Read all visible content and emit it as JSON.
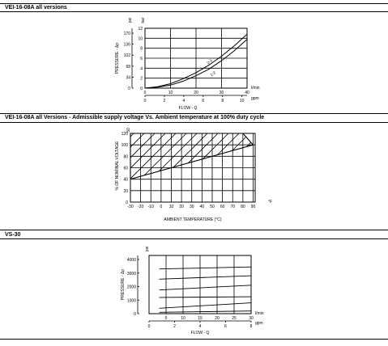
{
  "sections": [
    {
      "title": "VEI-16-08A all versions"
    },
    {
      "title": "VEI-16-08A all Versions - Admissible supply voltage Vs. Ambient temperature at 100% duty cycle"
    },
    {
      "title": "VS-30"
    }
  ],
  "chart_data": [
    {
      "type": "line",
      "y_unit": "bar",
      "y_ticks": [
        0,
        2,
        4,
        6,
        8,
        10,
        12
      ],
      "y_ticks_psi": [
        "0",
        "34",
        "68",
        "102",
        "136",
        "170"
      ],
      "y_psi_label": "psi",
      "ylabel": "PRESSURE - Δp",
      "ylim": [
        0,
        12
      ],
      "x_unit": "l/min",
      "x_ticks": [
        0,
        10,
        20,
        30,
        40
      ],
      "xlim": [
        0,
        40
      ],
      "x2_unit": "gpm",
      "x2_ticks": [
        "0",
        "2",
        "4",
        "6",
        "8",
        "10"
      ],
      "xlabel": "FLOW - Q",
      "series": [
        {
          "name": "2-1",
          "x": [
            0,
            5,
            10,
            15,
            20,
            25,
            30,
            35,
            40
          ],
          "y": [
            0,
            0.3,
            0.9,
            1.9,
            3.1,
            4.6,
            6.4,
            8.5,
            10.8
          ]
        },
        {
          "name": "1-2",
          "x": [
            0,
            5,
            10,
            15,
            20,
            25,
            30,
            35,
            40
          ],
          "y": [
            0,
            0.2,
            0.6,
            1.4,
            2.5,
            3.8,
            5.5,
            7.5,
            9.8
          ]
        }
      ]
    },
    {
      "type": "area",
      "ylabel": "% OF NOMINAL VOLTAGE",
      "y_ticks": [
        0,
        20,
        40,
        60,
        80,
        100,
        120
      ],
      "y_top_label": "50",
      "ylim": [
        0,
        120
      ],
      "x_unit": "°F",
      "x_ticks": [
        -30,
        -20,
        -10,
        0,
        10,
        20,
        30,
        40,
        50,
        60,
        70,
        80,
        90
      ],
      "x_tick_labels": [
        "-30",
        "-20",
        "-10",
        "0",
        "10",
        "20",
        "30",
        "40",
        "50",
        "60",
        "70",
        "80",
        "90"
      ],
      "xlim": [
        -30,
        92
      ],
      "xlabel": "AMBIENT TEMPERATURE (°C)",
      "boundary_upper": {
        "x": [
          -30,
          80,
          90
        ],
        "y": [
          120,
          120,
          100
        ]
      },
      "boundary_lower": {
        "x": [
          -30,
          90
        ],
        "y": [
          40,
          100
        ]
      }
    },
    {
      "type": "line",
      "ylabel": "PRESSURE - Δp",
      "y_ticks": [
        0,
        1000,
        2000,
        3000,
        4000
      ],
      "y_top_label": "psi",
      "ylim": [
        0,
        4300
      ],
      "x_unit": "l/min",
      "x_ticks": [
        0,
        5,
        10,
        15,
        20,
        25,
        30
      ],
      "x_tick_labels": [
        "",
        "5",
        "10",
        "15",
        "20",
        "25",
        "30"
      ],
      "xlim": [
        0,
        30
      ],
      "x2_unit": "gpm",
      "x2_ticks": [
        "0",
        "2",
        "4",
        "6",
        "8"
      ],
      "xlabel": "FLOW - Q",
      "series": [
        {
          "x": [
            3,
            30
          ],
          "y": [
            3300,
            3450
          ]
        },
        {
          "x": [
            3,
            30
          ],
          "y": [
            2550,
            2800
          ]
        },
        {
          "x": [
            3,
            30
          ],
          "y": [
            1750,
            2100
          ]
        },
        {
          "x": [
            3,
            30
          ],
          "y": [
            1200,
            1250
          ]
        },
        {
          "x": [
            3,
            30
          ],
          "y": [
            400,
            800
          ]
        },
        {
          "x": [
            3,
            30
          ],
          "y": [
            100,
            200
          ]
        }
      ]
    }
  ]
}
